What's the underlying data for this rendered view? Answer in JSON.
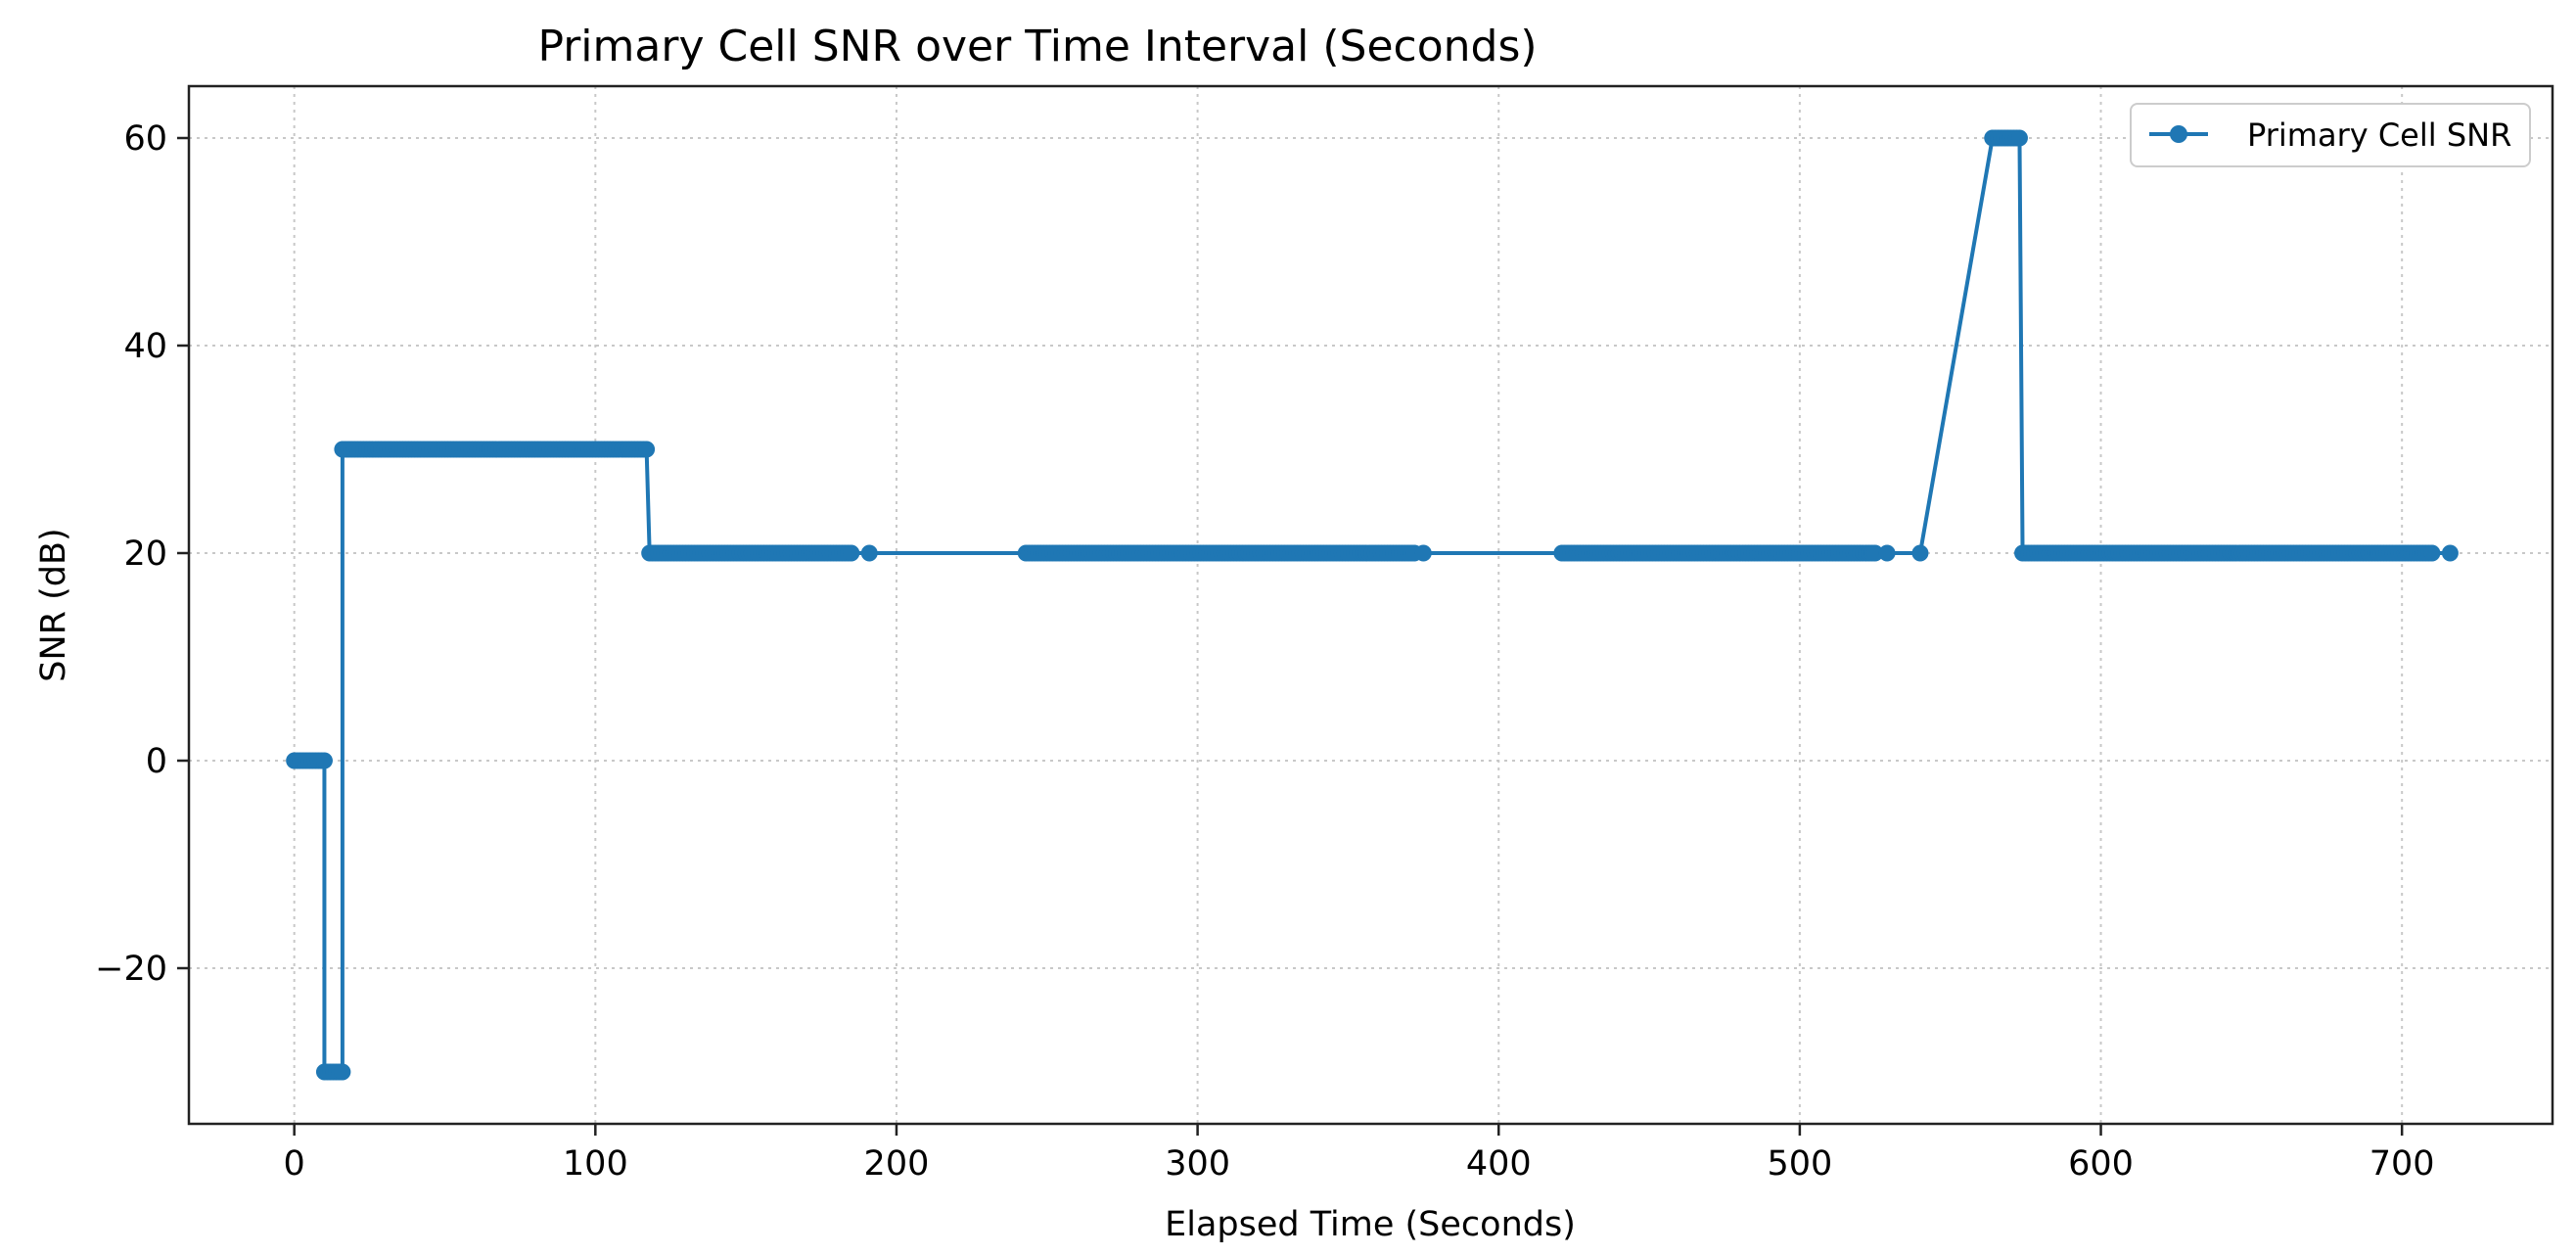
{
  "chart_data": {
    "type": "line",
    "title": "Primary Cell SNR over Time Interval (Seconds)",
    "xlabel": "Elapsed Time (Seconds)",
    "ylabel": "SNR (dB)",
    "xlim": [
      -35,
      750
    ],
    "ylim": [
      -35,
      65
    ],
    "xticks": [
      0,
      100,
      200,
      300,
      400,
      500,
      600,
      700
    ],
    "yticks": [
      -20,
      0,
      20,
      40,
      60
    ],
    "xtick_labels": [
      "0",
      "100",
      "200",
      "300",
      "400",
      "500",
      "600",
      "700"
    ],
    "ytick_labels": [
      "−20",
      "0",
      "20",
      "40",
      "60"
    ],
    "grid": true,
    "legend": "top-right",
    "color": "#1f77b4",
    "series": [
      {
        "name": "Primary Cell SNR",
        "segments": [
          {
            "x_start": 0,
            "x_end": 10,
            "step": 1,
            "y": 0
          },
          {
            "x_start": 10,
            "x_end": 16,
            "step": 1,
            "y": -30
          },
          {
            "x_start": 16,
            "x_end": 117,
            "step": 1,
            "y": 30
          },
          {
            "x_start": 118,
            "x_end": 185,
            "step": 1,
            "y": 20
          },
          {
            "x_start": 191,
            "x_end": 191,
            "step": 1,
            "y": 20
          },
          {
            "x_start": 243,
            "x_end": 372,
            "step": 1,
            "y": 20
          },
          {
            "x_start": 375,
            "x_end": 375,
            "step": 1,
            "y": 20
          },
          {
            "x_start": 421,
            "x_end": 525,
            "step": 1,
            "y": 20
          },
          {
            "x_start": 529,
            "x_end": 529,
            "step": 1,
            "y": 20
          },
          {
            "x_start": 540,
            "x_end": 540,
            "step": 1,
            "y": 20
          },
          {
            "x_start": 564,
            "x_end": 573,
            "step": 1,
            "y": 60
          },
          {
            "x_start": 574,
            "x_end": 710,
            "step": 1,
            "y": 20
          },
          {
            "x_start": 716,
            "x_end": 716,
            "step": 1,
            "y": 20
          }
        ]
      }
    ]
  }
}
